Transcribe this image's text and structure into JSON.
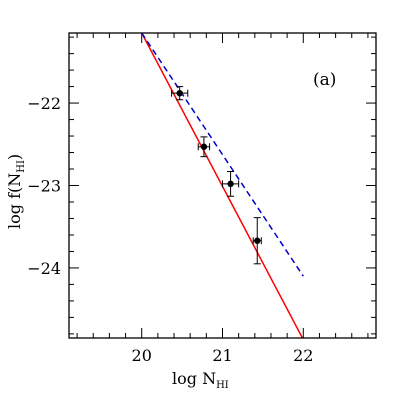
{
  "chart_data": {
    "type": "scatter",
    "panel_label": "(a)",
    "xlabel": {
      "main": "log  N",
      "sub": "HI"
    },
    "ylabel": {
      "main": "log  f(N",
      "sub": "HI",
      "close": ")"
    },
    "xlim": [
      19.1,
      22.9
    ],
    "ylim": [
      -24.85,
      -21.15
    ],
    "x_ticks": [
      20,
      21,
      22
    ],
    "x_tick_labels": [
      "20",
      "21",
      "22"
    ],
    "y_ticks": [
      -22,
      -23,
      -24
    ],
    "y_tick_labels": [
      "−22",
      "−23",
      "−24"
    ],
    "grid": false,
    "points": [
      {
        "x": 20.47,
        "y": -21.88,
        "xerr": 0.1,
        "yerr": 0.08
      },
      {
        "x": 20.77,
        "y": -22.53,
        "xerr": 0.07,
        "yerr": 0.12
      },
      {
        "x": 21.1,
        "y": -22.98,
        "xerr": 0.1,
        "yerr": 0.15
      },
      {
        "x": 21.43,
        "y": -23.67,
        "xerr": 0.05,
        "yerr": 0.28
      }
    ],
    "lines": [
      {
        "style": "solid",
        "color": "#ff0000",
        "x": [
          20.0,
          22.0
        ],
        "y": [
          -21.15,
          -24.87
        ]
      },
      {
        "style": "dashed",
        "color": "#0000cc",
        "x": [
          20.0,
          22.0
        ],
        "y": [
          -21.15,
          -24.1
        ]
      }
    ]
  }
}
